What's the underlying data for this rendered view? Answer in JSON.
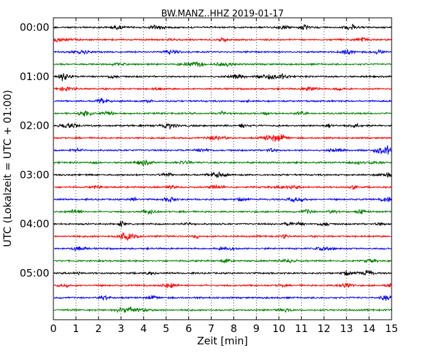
{
  "chart_data": {
    "type": "line",
    "title": "BW.MANZ..HHZ 2019-01-17",
    "xlabel": "Zeit  [min]",
    "ylabel": "UTC (Lokalzeit = UTC + 01:00)",
    "xlim": [
      0,
      15
    ],
    "x_ticks": [
      "0",
      "1",
      "2",
      "3",
      "4",
      "5",
      "6",
      "7",
      "8",
      "9",
      "10",
      "11",
      "12",
      "13",
      "14",
      "15"
    ],
    "y_tick_labels": [
      "00:00",
      "01:00",
      "02:00",
      "03:00",
      "04:00",
      "05:00"
    ],
    "trace_count": 24,
    "trace_colors": [
      "#000000",
      "#ff0000",
      "#0000ff",
      "#008000"
    ],
    "grid": "vertical dotted",
    "spike": {
      "trace": 12,
      "x_min": 5.15
    }
  }
}
